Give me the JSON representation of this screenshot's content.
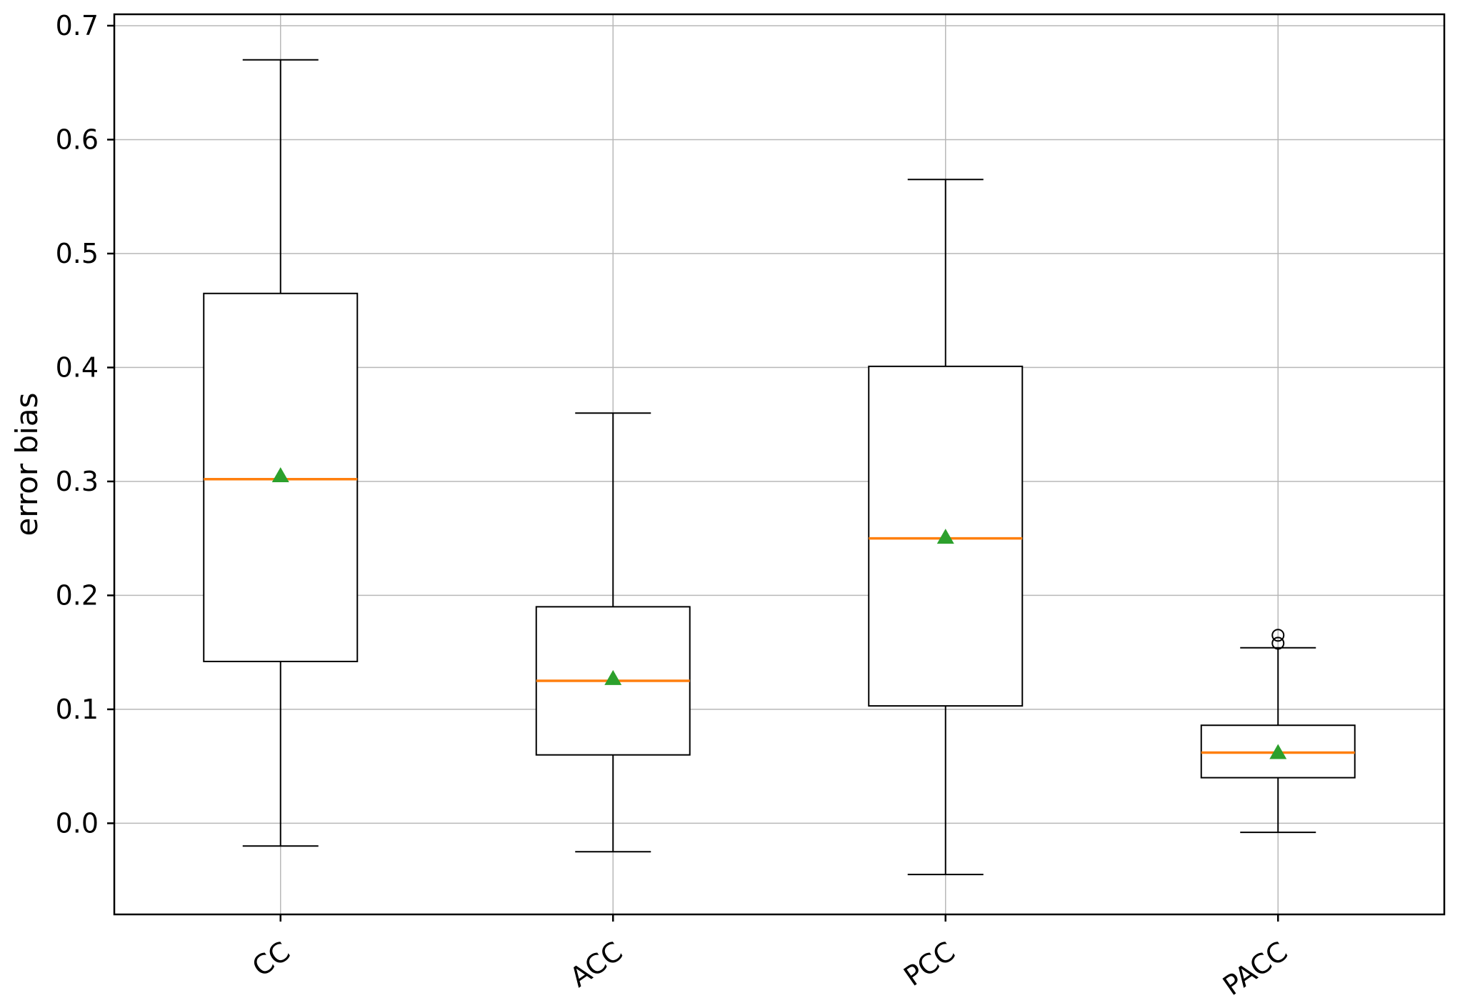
{
  "chart_data": {
    "type": "boxplot",
    "title": "",
    "xlabel": "",
    "ylabel": "error bias",
    "categories": [
      "CC",
      "ACC",
      "PCC",
      "PACC"
    ],
    "ylim": [
      -0.08,
      0.71
    ],
    "yticks": [
      0.0,
      0.1,
      0.2,
      0.3,
      0.4,
      0.5,
      0.6,
      0.7
    ],
    "ytick_labels": [
      "0.0",
      "0.1",
      "0.2",
      "0.3",
      "0.4",
      "0.5",
      "0.6",
      "0.7"
    ],
    "grid": true,
    "legend_position": "none",
    "boxes": [
      {
        "label": "CC",
        "whisker_low": -0.02,
        "q1": 0.142,
        "median": 0.302,
        "q3": 0.465,
        "whisker_high": 0.67,
        "mean": 0.305,
        "outliers": []
      },
      {
        "label": "ACC",
        "whisker_low": -0.025,
        "q1": 0.06,
        "median": 0.125,
        "q3": 0.19,
        "whisker_high": 0.36,
        "mean": 0.127,
        "outliers": []
      },
      {
        "label": "PCC",
        "whisker_low": -0.045,
        "q1": 0.103,
        "median": 0.25,
        "q3": 0.401,
        "whisker_high": 0.565,
        "mean": 0.251,
        "outliers": []
      },
      {
        "label": "PACC",
        "whisker_low": -0.008,
        "q1": 0.04,
        "median": 0.062,
        "q3": 0.086,
        "whisker_high": 0.154,
        "mean": 0.062,
        "outliers": [
          0.158,
          0.165
        ]
      }
    ],
    "colors": {
      "box_edge": "#000000",
      "median": "#ff7f0e",
      "mean_marker": "#2ca02c",
      "grid": "#b8b8b8",
      "spine": "#000000",
      "background": "#ffffff"
    }
  }
}
